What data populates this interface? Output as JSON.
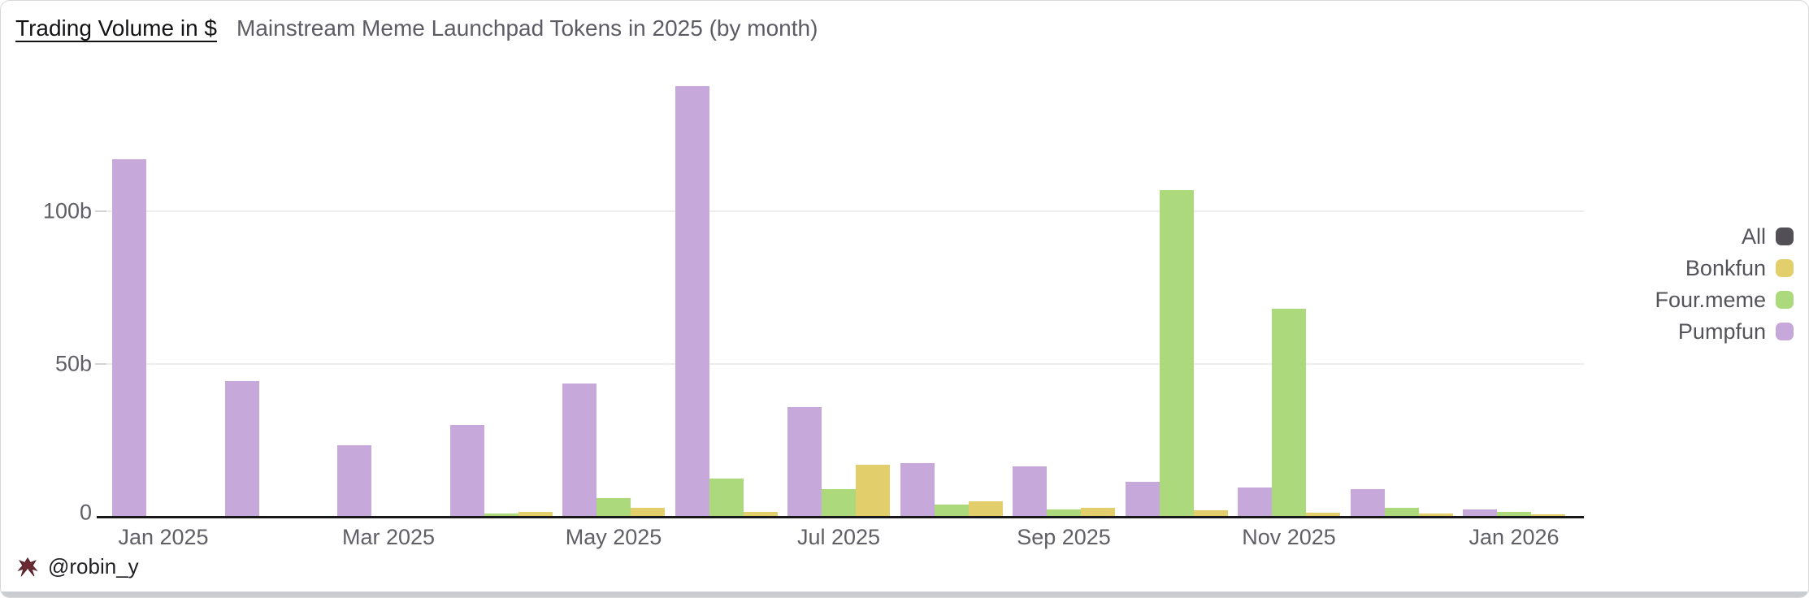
{
  "header": {
    "title": "Trading Volume in $",
    "subtitle": "Mainstream Meme Launchpad Tokens in 2025 (by month)"
  },
  "legend": {
    "items": [
      {
        "label": "All",
        "color": "#524f56"
      },
      {
        "label": "Bonkfun",
        "color": "#e2cf6b"
      },
      {
        "label": "Four.meme",
        "color": "#abd97c"
      },
      {
        "label": "Pumpfun",
        "color": "#c6a8db"
      }
    ]
  },
  "chart_data": {
    "type": "bar",
    "title": "Trading Volume in $ — Mainstream Meme Launchpad Tokens in 2025 (by month)",
    "unit": "billions of USD",
    "categories": [
      "Jan 2025",
      "Feb 2025",
      "Mar 2025",
      "Apr 2025",
      "May 2025",
      "Jun 2025",
      "Jul 2025",
      "Aug 2025",
      "Sep 2025",
      "Oct 2025",
      "Nov 2025",
      "Dec 2025",
      "Jan 2026"
    ],
    "x_tick_labels": [
      "Jan 2025",
      "Mar 2025",
      "May 2025",
      "Jul 2025",
      "Sep 2025",
      "Nov 2025",
      "Jan 2026"
    ],
    "series": [
      {
        "name": "Pumpfun",
        "color": "#c6a8db",
        "values": [
          117,
          44.5,
          23.5,
          30,
          43.5,
          141,
          36,
          17.5,
          16.5,
          11.5,
          9.5,
          9,
          2.5
        ]
      },
      {
        "name": "Four.meme",
        "color": "#abd97c",
        "values": [
          0,
          0,
          0,
          1,
          6,
          12.5,
          9,
          4,
          2.5,
          107,
          68,
          3,
          1.5
        ]
      },
      {
        "name": "Bonkfun",
        "color": "#e2cf6b",
        "values": [
          0,
          0,
          0,
          1.5,
          3,
          1.5,
          17,
          5,
          3,
          2,
          1.3,
          1,
          0.7
        ]
      }
    ],
    "y_ticks": [
      {
        "label": "0",
        "value": 0
      },
      {
        "label": "50b",
        "value": 50
      },
      {
        "label": "100b",
        "value": 100
      }
    ],
    "ylim": [
      0,
      153
    ],
    "grid": "horizontal",
    "legend_position": "right"
  },
  "footer": {
    "credit": "@robin_y",
    "mascot_icon": "dark-red mascot glyph"
  }
}
